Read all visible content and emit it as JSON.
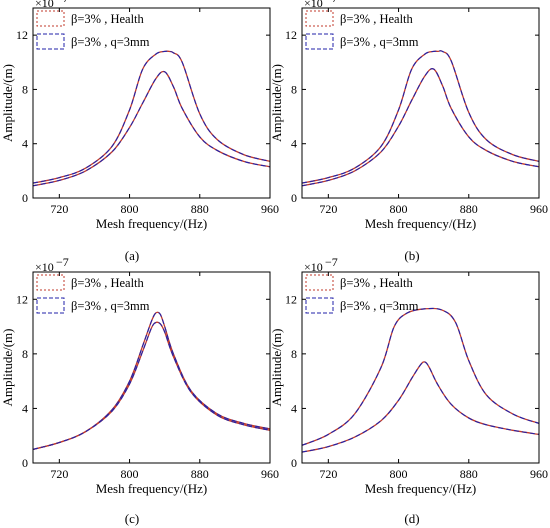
{
  "chart_data": [
    {
      "type": "line",
      "panel_label": "(a)",
      "xlabel": "Mesh frequency/(Hz)",
      "ylabel": "Amplitude/(m)",
      "y_multiplier": "×10",
      "y_exponent": "−7",
      "xlim": [
        690,
        960
      ],
      "ylim": [
        0,
        14
      ],
      "xticks": [
        "720",
        "800",
        "880",
        "960"
      ],
      "yticks": [
        "0",
        "4",
        "8",
        "12"
      ],
      "legend_position": "top-left",
      "legend": [
        {
          "beta": "β=3% , Health",
          "color": "#c0392b"
        },
        {
          "beta": "β=3% , q=3mm",
          "color": "#2222aa"
        }
      ],
      "series": [
        {
          "x": [
            690,
            720,
            750,
            780,
            800,
            815,
            830,
            840,
            845,
            850,
            860,
            880,
            900,
            930,
            960
          ],
          "y": [
            1.1,
            1.5,
            2.2,
            3.8,
            6.5,
            9.5,
            10.6,
            10.8,
            10.8,
            10.7,
            10.0,
            6.2,
            4.3,
            3.2,
            2.7
          ]
        },
        {
          "x": [
            690,
            720,
            750,
            780,
            800,
            815,
            830,
            840,
            850,
            860,
            880,
            900,
            930,
            960
          ],
          "y": [
            0.9,
            1.3,
            2.0,
            3.4,
            5.2,
            7.0,
            8.8,
            9.3,
            8.2,
            6.6,
            4.5,
            3.5,
            2.7,
            2.3
          ]
        }
      ]
    },
    {
      "type": "line",
      "panel_label": "(b)",
      "xlabel": "Mesh frequency/(Hz)",
      "ylabel": "Amplitude/(m)",
      "y_multiplier": "×10",
      "y_exponent": "−7",
      "xlim": [
        690,
        960
      ],
      "ylim": [
        0,
        14
      ],
      "xticks": [
        "720",
        "800",
        "880",
        "960"
      ],
      "yticks": [
        "0",
        "4",
        "8",
        "12"
      ],
      "legend_position": "top-left",
      "legend": [
        {
          "beta": "β=3% , Health",
          "color": "#c0392b"
        },
        {
          "beta": "β=3% , q=3mm",
          "color": "#2222aa"
        }
      ],
      "series": [
        {
          "x": [
            690,
            720,
            750,
            780,
            800,
            815,
            830,
            840,
            845,
            850,
            860,
            880,
            900,
            930,
            960
          ],
          "y": [
            1.1,
            1.5,
            2.2,
            3.8,
            6.5,
            9.5,
            10.6,
            10.8,
            10.8,
            10.8,
            10.1,
            6.3,
            4.3,
            3.2,
            2.7
          ]
        },
        {
          "x": [
            690,
            720,
            750,
            780,
            800,
            815,
            830,
            840,
            850,
            860,
            880,
            900,
            930,
            960
          ],
          "y": [
            0.9,
            1.3,
            2.0,
            3.4,
            5.3,
            7.2,
            9.0,
            9.5,
            8.3,
            6.6,
            4.5,
            3.5,
            2.7,
            2.3
          ]
        }
      ]
    },
    {
      "type": "line",
      "panel_label": "(c)",
      "xlabel": "Mesh frequency/(Hz)",
      "ylabel": "Amplitude/(m)",
      "y_multiplier": "×10",
      "y_exponent": "−7",
      "xlim": [
        690,
        960
      ],
      "ylim": [
        0,
        14
      ],
      "xticks": [
        "720",
        "800",
        "880",
        "960"
      ],
      "yticks": [
        "0",
        "4",
        "8",
        "12"
      ],
      "legend_position": "top-left",
      "legend": [
        {
          "beta": "β=3% , Health",
          "color": "#c0392b"
        },
        {
          "beta": "β=3% , q=3mm",
          "color": "#2222aa"
        }
      ],
      "series": [
        {
          "x": [
            690,
            720,
            750,
            780,
            800,
            815,
            825,
            830,
            835,
            840,
            850,
            870,
            900,
            930,
            960
          ],
          "y": [
            1.0,
            1.5,
            2.3,
            3.9,
            6.0,
            8.6,
            10.4,
            11.0,
            10.9,
            10.0,
            8.0,
            5.3,
            3.6,
            2.9,
            2.5
          ]
        },
        {
          "x": [
            690,
            720,
            750,
            780,
            800,
            815,
            825,
            830,
            835,
            840,
            850,
            870,
            900,
            930,
            960
          ],
          "y": [
            1.0,
            1.5,
            2.3,
            3.8,
            5.8,
            8.2,
            9.9,
            10.3,
            10.2,
            9.6,
            7.8,
            5.2,
            3.5,
            2.8,
            2.4
          ]
        }
      ]
    },
    {
      "type": "line",
      "panel_label": "(d)",
      "xlabel": "Mesh frequency/(Hz)",
      "ylabel": "Amplitude/(m)",
      "y_multiplier": "×10",
      "y_exponent": "−7",
      "xlim": [
        690,
        960
      ],
      "ylim": [
        0,
        14
      ],
      "xticks": [
        "720",
        "800",
        "880",
        "960"
      ],
      "yticks": [
        "0",
        "4",
        "8",
        "12"
      ],
      "legend_position": "top-left",
      "legend": [
        {
          "beta": "β=3% , Health",
          "color": "#c0392b"
        },
        {
          "beta": "β=3% , q=3mm",
          "color": "#2222aa"
        }
      ],
      "series": [
        {
          "x": [
            690,
            720,
            750,
            780,
            795,
            810,
            830,
            850,
            865,
            880,
            900,
            930,
            960
          ],
          "y": [
            1.3,
            2.1,
            3.6,
            7.0,
            10.0,
            11.0,
            11.3,
            11.2,
            10.3,
            7.5,
            5.0,
            3.6,
            2.9
          ]
        },
        {
          "x": [
            690,
            720,
            750,
            780,
            800,
            815,
            825,
            830,
            835,
            845,
            860,
            880,
            900,
            930,
            960
          ],
          "y": [
            0.8,
            1.2,
            1.9,
            3.1,
            4.6,
            6.2,
            7.2,
            7.4,
            7.0,
            5.7,
            4.3,
            3.3,
            2.8,
            2.4,
            2.1
          ]
        }
      ]
    }
  ]
}
